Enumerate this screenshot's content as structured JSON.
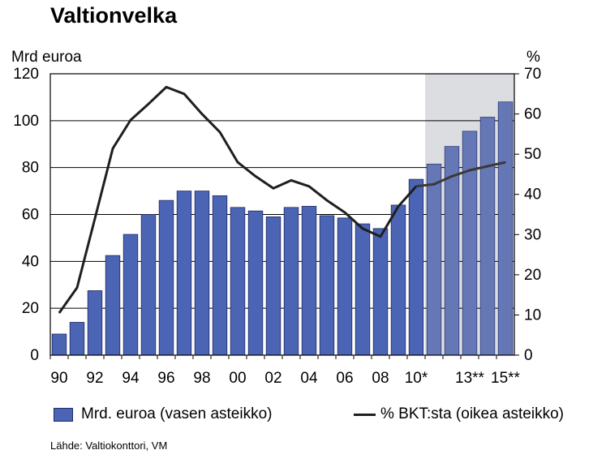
{
  "chart_data": {
    "type": "bar",
    "title": "Valtionvelka",
    "left_axis_label": "Mrd euroa",
    "right_axis_label": "%",
    "ylim_left": [
      0,
      120
    ],
    "ylim_right": [
      0,
      70
    ],
    "yticks_left": [
      0,
      20,
      40,
      60,
      80,
      100,
      120
    ],
    "yticks_right": [
      0,
      10,
      20,
      30,
      40,
      50,
      60,
      70
    ],
    "x": [
      "1990",
      "1991",
      "1992",
      "1993",
      "1994",
      "1995",
      "1996",
      "1997",
      "1998",
      "1999",
      "2000",
      "2001",
      "2002",
      "2003",
      "2004",
      "2005",
      "2006",
      "2007",
      "2008",
      "2009",
      "2010",
      "2011",
      "2012",
      "2013",
      "2014",
      "2015"
    ],
    "xtick_labels": [
      "90",
      "",
      "92",
      "",
      "94",
      "",
      "96",
      "",
      "98",
      "",
      "00",
      "",
      "02",
      "",
      "04",
      "",
      "06",
      "",
      "08",
      "",
      "10*",
      "",
      "",
      "13**",
      "",
      "15**"
    ],
    "forecast_start_index": 21,
    "series": [
      {
        "name": "Mrd. euroa (vasen asteikko)",
        "type": "bar",
        "axis": "left",
        "color": "#4b64b4",
        "values": [
          9,
          14,
          27.5,
          42.5,
          51.5,
          60,
          66,
          70,
          70,
          68,
          63,
          61.5,
          59,
          63,
          63.5,
          59.5,
          58.5,
          56,
          54,
          64,
          75,
          81.5,
          89,
          95.5,
          101.5,
          108
        ]
      },
      {
        "name": "% BKT:sta (oikea asteikko)",
        "type": "line",
        "axis": "right",
        "color": "#1f1f1f",
        "values": [
          10.5,
          16.8,
          34,
          51.4,
          58.5,
          62.5,
          66.7,
          65,
          60,
          55.5,
          48,
          44.5,
          41.5,
          43.5,
          42,
          38.5,
          35.5,
          31.5,
          29.5,
          37,
          42,
          42.5,
          44.5,
          46,
          47,
          48
        ]
      }
    ],
    "forecast_shading_color": "#dcdde1",
    "grid": true,
    "legend_position": "bottom"
  },
  "legend": {
    "bars_label": "Mrd. euroa (vasen asteikko)",
    "line_label": "% BKT:sta (oikea asteikko)"
  },
  "source": "Lähde: Valtiokonttori, VM"
}
